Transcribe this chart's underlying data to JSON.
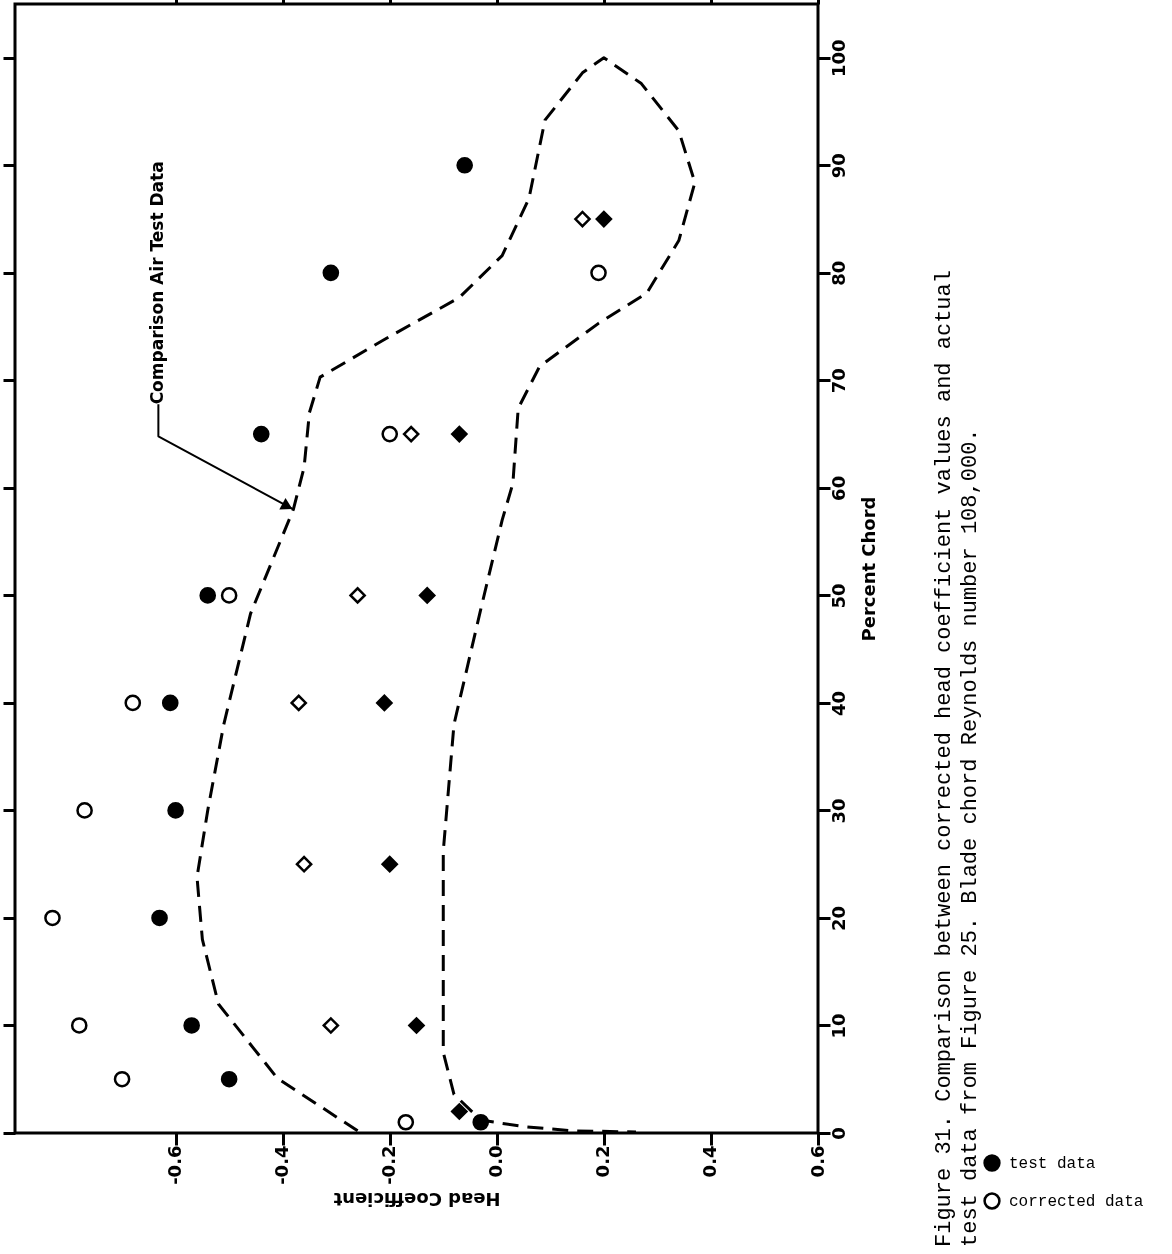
{
  "chart_data": {
    "type": "scatter",
    "xlabel": "Head Coefficient",
    "ylabel": "Percent Chord",
    "xlim": [
      -0.9,
      0.6
    ],
    "xticks": [
      -0.6,
      -0.4,
      -0.2,
      {
        "value": 0,
        "label": "0.0"
      },
      0.2,
      0.4,
      0.6
    ],
    "ylim": [
      0,
      105
    ],
    "yticks": [
      0,
      10,
      20,
      30,
      40,
      50,
      60,
      70,
      80,
      90,
      100
    ],
    "grid": false,
    "legend": "bottom right",
    "series": [
      {
        "name": "test data",
        "color": "#000000",
        "marker": "circle",
        "values": [
          1,
          5,
          10,
          20,
          30,
          40,
          50,
          65,
          80,
          90
        ],
        "x": [
          -0.03,
          -0.5,
          -0.57,
          -0.63,
          -0.6,
          -0.61,
          -0.54,
          -0.44,
          -0.31,
          -0.06
        ]
      },
      {
        "color": "#000000",
        "marker": "diamond",
        "values": [
          2,
          10,
          25,
          40,
          50,
          65,
          85
        ],
        "x": [
          -0.07,
          -0.15,
          -0.2,
          -0.21,
          -0.13,
          -0.07,
          0.2
        ]
      },
      {
        "name": "corrected data",
        "color": "#ffffff",
        "marker": "circle",
        "values": [
          1,
          5,
          10,
          20,
          30,
          40,
          50,
          65,
          80
        ],
        "x": [
          -0.17,
          -0.7,
          -0.78,
          -0.83,
          -0.77,
          -0.68,
          -0.5,
          -0.2,
          0.19
        ]
      },
      {
        "color": "#ffffff",
        "marker": "diamond",
        "values": [
          10,
          25,
          40,
          50,
          65,
          85
        ],
        "x": [
          -0.31,
          -0.36,
          -0.37,
          -0.26,
          -0.16,
          0.16
        ]
      },
      {
        "type": "line",
        "color": "#000000",
        "marker": "none",
        "line_style": "dashed",
        "values": [
          0.2,
          5.1,
          12,
          18,
          23.8,
          30,
          38,
          48.3,
          58,
          61.9,
          67,
          70.3,
          73.8,
          77.7,
          81.6,
          86.9,
          94.2,
          98.6,
          100,
          97.6,
          93.2,
          88.4,
          83,
          78.1,
          75.3,
          71.3,
          67.4,
          60.4,
          57,
          48.7,
          38,
          26.2,
          18,
          7.5,
          3.6,
          1.2,
          0.6,
          0.2,
          0.1
        ],
        "x": [
          -0.26,
          -0.41,
          -0.52,
          -0.55,
          -0.56,
          -0.54,
          -0.51,
          -0.46,
          -0.38,
          -0.36,
          -0.35,
          -0.33,
          -0.21,
          -0.07,
          0.01,
          0.06,
          0.09,
          0.16,
          0.2,
          0.27,
          0.34,
          0.37,
          0.34,
          0.28,
          0.19,
          0.08,
          0.04,
          0.03,
          0.01,
          -0.03,
          -0.08,
          -0.1,
          -0.1,
          -0.1,
          -0.08,
          -0.03,
          0.05,
          0.14,
          0.26
        ]
      }
    ],
    "annotations": [
      {
        "text": "Comparison Air Test Data",
        "x": -0.38,
        "y": 58
      },
      "Figure 31.  Comparison between corrected head coefficient values and actual",
      "test data from Figure 25.  Blade chord Reynolds number 108,000."
    ]
  }
}
